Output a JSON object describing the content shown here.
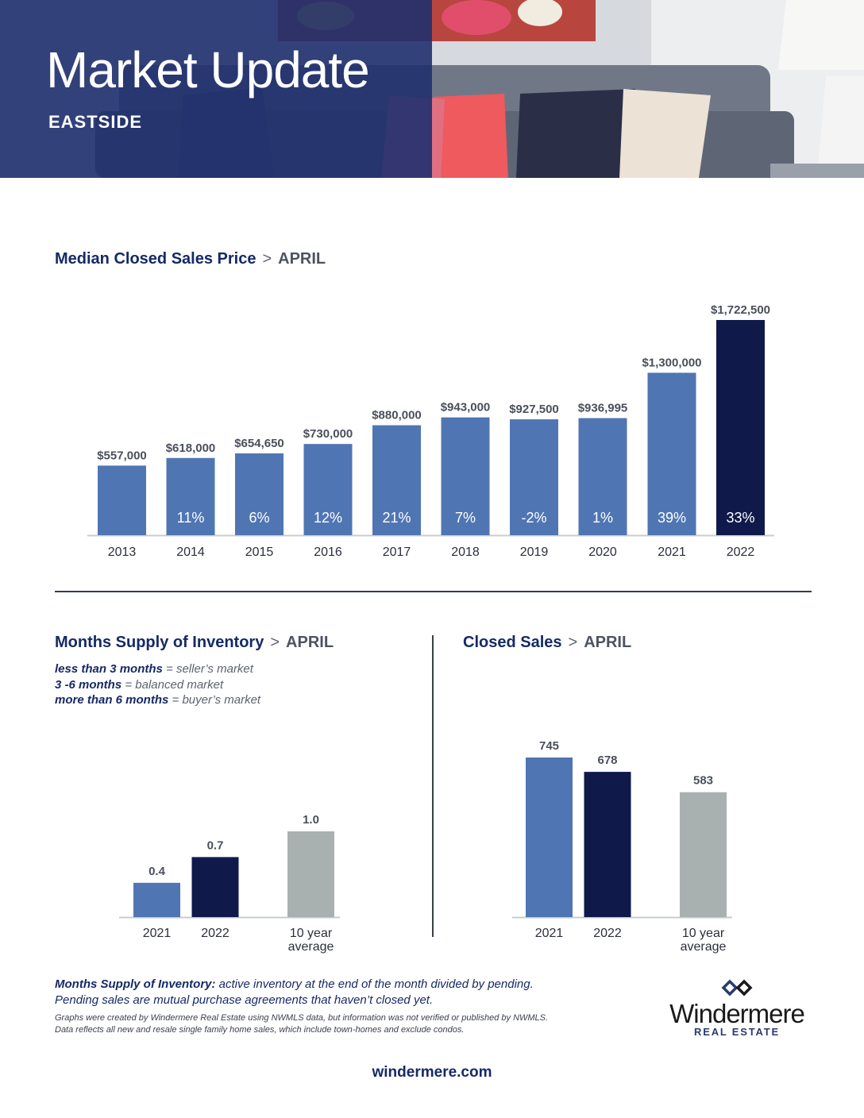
{
  "header": {
    "title": "Market Update",
    "region": "EASTSIDE"
  },
  "colors": {
    "bar": "#4f76b3",
    "bar_current": "#0f1a4a",
    "bar_average": "#a9b0b0",
    "axis": "#c7ccd2",
    "value_label": "#4a4f5c",
    "tick_label": "#2b2f38"
  },
  "charts": {
    "price": {
      "title": "Median Closed Sales Price",
      "separator": ">",
      "month": "APRIL"
    },
    "inventory": {
      "title": "Months Supply of Inventory",
      "separator": ">",
      "month": "APRIL",
      "legend": [
        {
          "term": "less than 3 months",
          "meaning": " = seller’s market"
        },
        {
          "term": "3 -6 months",
          "meaning": " = balanced market"
        },
        {
          "term": "more than 6 months",
          "meaning": " = buyer’s market"
        }
      ]
    },
    "sales": {
      "title": "Closed Sales",
      "separator": ">",
      "month": "APRIL"
    }
  },
  "chart_data": [
    {
      "type": "bar",
      "title": "Median Closed Sales Price > APRIL",
      "categories": [
        "2013",
        "2014",
        "2015",
        "2016",
        "2017",
        "2018",
        "2019",
        "2020",
        "2021",
        "2022"
      ],
      "values": [
        557000,
        618000,
        654650,
        730000,
        880000,
        943000,
        927500,
        936995,
        1300000,
        1722500
      ],
      "value_labels": [
        "$557,000",
        "$618,000",
        "$654,650",
        "$730,000",
        "$880,000",
        "$943,000",
        "$927,500",
        "$936,995",
        "$1,300,000",
        "$1,722,500"
      ],
      "change_labels": [
        "",
        "11%",
        "6%",
        "12%",
        "21%",
        "7%",
        "-2%",
        "1%",
        "39%",
        "33%"
      ],
      "highlight_index": 9,
      "ylim": [
        0,
        1722500
      ]
    },
    {
      "type": "bar",
      "title": "Months Supply of Inventory > APRIL",
      "categories": [
        "2021",
        "2022",
        "10 year average"
      ],
      "category_lines": [
        [
          "2021"
        ],
        [
          "2022"
        ],
        [
          "10 year",
          "average"
        ]
      ],
      "values": [
        0.4,
        0.7,
        1.0
      ],
      "value_labels": [
        "0.4",
        "0.7",
        "1.0"
      ],
      "ylim": [
        0,
        1.0
      ]
    },
    {
      "type": "bar",
      "title": "Closed Sales > APRIL",
      "categories": [
        "2021",
        "2022",
        "10 year average"
      ],
      "category_lines": [
        [
          "2021"
        ],
        [
          "2022"
        ],
        [
          "10 year",
          "average"
        ]
      ],
      "values": [
        745,
        678,
        583
      ],
      "value_labels": [
        "745",
        "678",
        "583"
      ],
      "ylim": [
        0,
        745
      ]
    }
  ],
  "footnote": {
    "term": "Months Supply of Inventory:",
    "definition": " active inventory at the end of the month divided by pending.",
    "line2": "Pending sales are mutual purchase agreements that haven’t closed yet.",
    "disclaimer1": "Graphs were created by Windermere Real Estate using NWMLS data, but information was not verified or published by NWMLS.",
    "disclaimer2": "Data reflects all new and resale single family home sales, which include town-homes and exclude condos."
  },
  "brand": {
    "name": "Windermere",
    "sub": "REAL ESTATE",
    "website": "windermere.com"
  }
}
